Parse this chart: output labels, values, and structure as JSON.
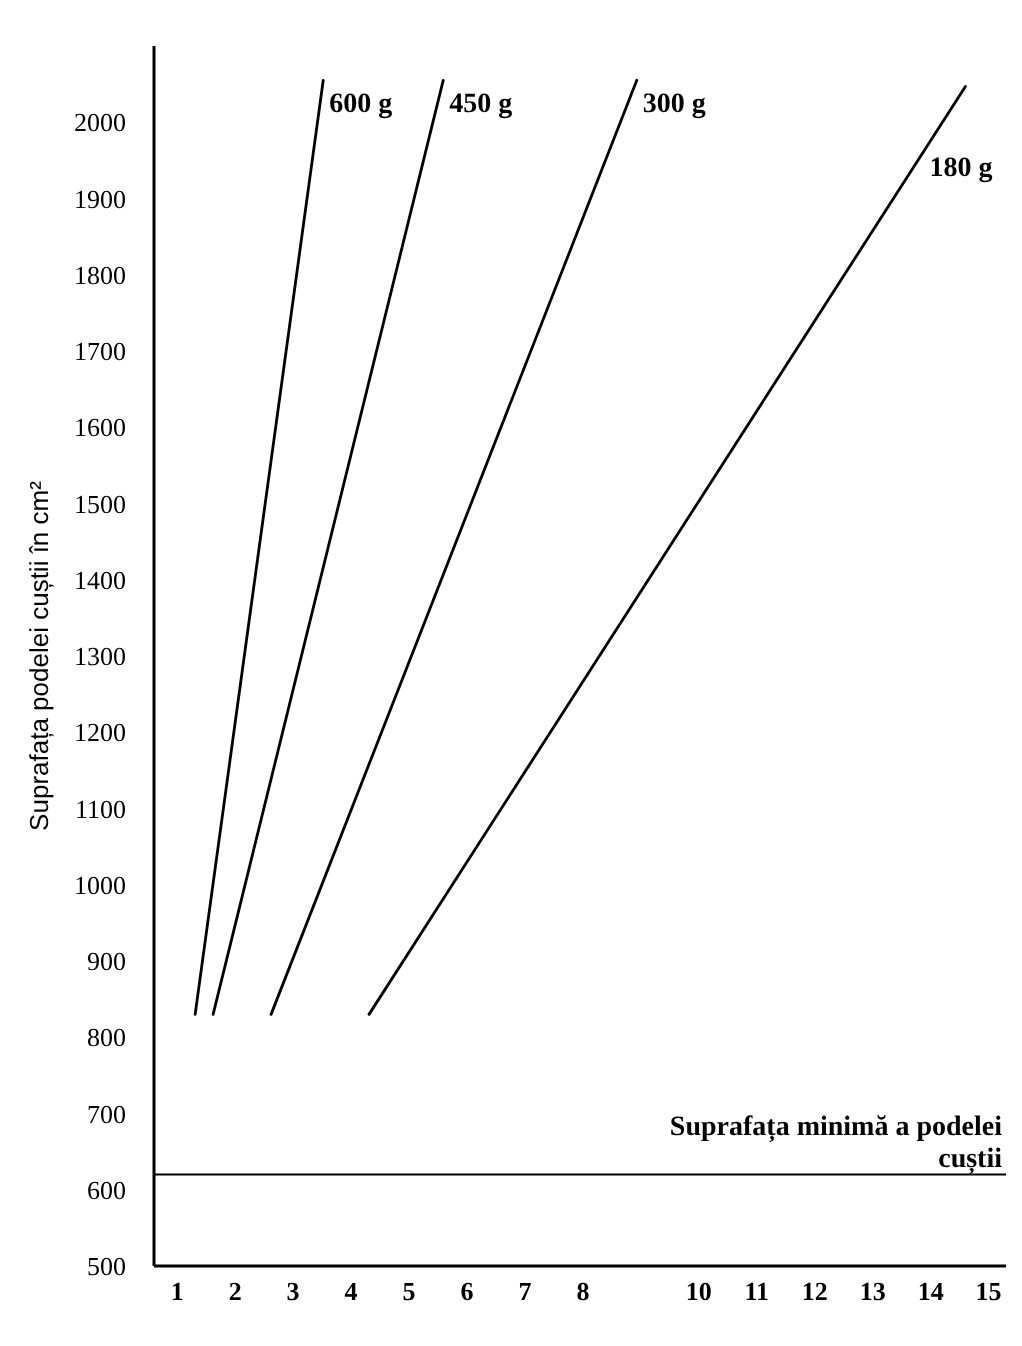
{
  "chart_data": {
    "type": "line",
    "ylabel": "Suprafața podelei cuștii în cm²",
    "xlim": [
      0.6,
      15.3
    ],
    "xticks": [
      1,
      2,
      3,
      4,
      5,
      6,
      7,
      8,
      10,
      11,
      12,
      13,
      14,
      15
    ],
    "ylim": [
      500,
      2100
    ],
    "yticks": [
      500,
      600,
      700,
      800,
      900,
      1000,
      1100,
      1200,
      1300,
      1400,
      1500,
      1600,
      1700,
      1800,
      1900,
      2000
    ],
    "series": [
      {
        "name": "600 g",
        "color": "#000000",
        "x": [
          1.31,
          3.52
        ],
        "values": [
          830,
          2055
        ]
      },
      {
        "name": "450 g",
        "color": "#000000",
        "x": [
          1.62,
          5.59
        ],
        "values": [
          830,
          2055
        ]
      },
      {
        "name": "300 g",
        "color": "#000000",
        "x": [
          2.62,
          8.93
        ],
        "values": [
          830,
          2055
        ]
      },
      {
        "name": "180 g",
        "color": "#000000",
        "x": [
          4.31,
          14.6
        ],
        "values": [
          830,
          2047
        ]
      }
    ],
    "ref_lines": [
      {
        "axis": "y",
        "value": 620,
        "label": "Suprafața minimă a podelei cuștii",
        "color": "#000000"
      }
    ],
    "grid": false,
    "marker": "none",
    "line_style": "solid"
  }
}
